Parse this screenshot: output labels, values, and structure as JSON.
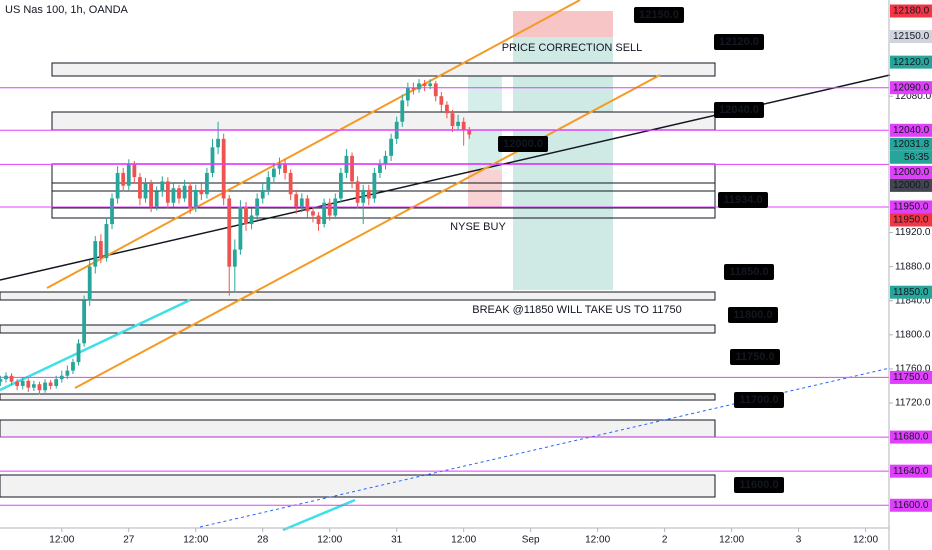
{
  "chart_data": {
    "type": "candlestick",
    "title": "US Nas 100, 1h, OANDA",
    "up_color": "#26a69a",
    "down_color": "#ef5350",
    "x": [
      -11,
      -10,
      -9,
      -8,
      -7,
      -6,
      -5,
      -4,
      -3,
      -2,
      -1,
      0,
      1,
      2,
      3,
      4,
      5,
      6,
      7,
      8,
      9,
      10,
      11,
      12,
      13,
      14,
      15,
      16,
      17,
      18,
      19,
      20,
      21,
      22,
      23,
      24,
      25,
      26,
      27,
      28,
      29,
      30,
      31,
      32,
      33,
      34,
      35,
      36,
      37,
      38,
      39,
      40,
      41,
      42,
      43,
      44,
      45,
      46,
      47,
      48,
      49,
      50,
      51,
      52,
      53,
      54,
      55,
      56,
      57,
      58,
      59,
      60,
      61,
      62,
      63,
      64,
      65,
      66,
      67,
      68,
      69,
      70,
      71,
      72,
      73
    ],
    "ohlc": [
      [
        11745,
        11752,
        11740,
        11748
      ],
      [
        11748,
        11756,
        11744,
        11752
      ],
      [
        11752,
        11755,
        11741,
        11745
      ],
      [
        11745,
        11748,
        11735,
        11740
      ],
      [
        11740,
        11750,
        11736,
        11746
      ],
      [
        11746,
        11749,
        11733,
        11738
      ],
      [
        11738,
        11746,
        11734,
        11742
      ],
      [
        11742,
        11745,
        11730,
        11735
      ],
      [
        11735,
        11748,
        11732,
        11744
      ],
      [
        11744,
        11747,
        11736,
        11740
      ],
      [
        11740,
        11752,
        11737,
        11748
      ],
      [
        11748,
        11758,
        11744,
        11752
      ],
      [
        11752,
        11764,
        11748,
        11758
      ],
      [
        11758,
        11772,
        11754,
        11768
      ],
      [
        11768,
        11795,
        11764,
        11790
      ],
      [
        11790,
        11846,
        11786,
        11840
      ],
      [
        11840,
        11888,
        11834,
        11880
      ],
      [
        11880,
        11916,
        11872,
        11910
      ],
      [
        11910,
        11918,
        11884,
        11890
      ],
      [
        11890,
        11936,
        11886,
        11930
      ],
      [
        11930,
        11966,
        11924,
        11960
      ],
      [
        11960,
        11998,
        11954,
        11990
      ],
      [
        11990,
        11996,
        11968,
        11975
      ],
      [
        11975,
        12006,
        11970,
        12000
      ],
      [
        12000,
        12004,
        11978,
        11985
      ],
      [
        11985,
        11990,
        11952,
        11960
      ],
      [
        11960,
        11984,
        11955,
        11978
      ],
      [
        11978,
        11982,
        11944,
        11950
      ],
      [
        11950,
        11974,
        11946,
        11968
      ],
      [
        11968,
        11986,
        11962,
        11980
      ],
      [
        11980,
        11985,
        11948,
        11955
      ],
      [
        11955,
        11978,
        11950,
        11972
      ],
      [
        11972,
        11976,
        11954,
        11960
      ],
      [
        11960,
        11982,
        11956,
        11975
      ],
      [
        11975,
        11979,
        11942,
        11948
      ],
      [
        11948,
        11976,
        11944,
        11970
      ],
      [
        11970,
        11978,
        11958,
        11965
      ],
      [
        11965,
        11996,
        11960,
        11990
      ],
      [
        11990,
        12030,
        11985,
        12020
      ],
      [
        12020,
        12050,
        12012,
        12030
      ],
      [
        12030,
        12036,
        11952,
        11960
      ],
      [
        11960,
        11964,
        11846,
        11880
      ],
      [
        11880,
        11912,
        11850,
        11900
      ],
      [
        11900,
        11958,
        11894,
        11950
      ],
      [
        11950,
        11956,
        11922,
        11930
      ],
      [
        11930,
        11948,
        11924,
        11940
      ],
      [
        11940,
        11966,
        11934,
        11960
      ],
      [
        11960,
        11978,
        11954,
        11970
      ],
      [
        11970,
        11992,
        11964,
        11985
      ],
      [
        11985,
        12002,
        11978,
        11995
      ],
      [
        11995,
        12008,
        11988,
        12000
      ],
      [
        12000,
        12006,
        11982,
        11990
      ],
      [
        11990,
        11994,
        11958,
        11965
      ],
      [
        11965,
        11970,
        11942,
        11950
      ],
      [
        11950,
        11966,
        11944,
        11960
      ],
      [
        11960,
        11964,
        11938,
        11945
      ],
      [
        11945,
        11950,
        11932,
        11940
      ],
      [
        11940,
        11944,
        11922,
        11930
      ],
      [
        11930,
        11960,
        11926,
        11955
      ],
      [
        11955,
        11960,
        11934,
        11940
      ],
      [
        11940,
        11966,
        11936,
        11960
      ],
      [
        11960,
        11996,
        11955,
        11990
      ],
      [
        11990,
        12018,
        11984,
        12010
      ],
      [
        12010,
        12014,
        11972,
        11980
      ],
      [
        11980,
        11986,
        11948,
        11955
      ],
      [
        11955,
        11976,
        11930,
        11970
      ],
      [
        11970,
        11976,
        11952,
        11960
      ],
      [
        11960,
        11996,
        11955,
        11990
      ],
      [
        11990,
        12006,
        11984,
        12000
      ],
      [
        12000,
        12016,
        11994,
        12010
      ],
      [
        12010,
        12036,
        12004,
        12030
      ],
      [
        12030,
        12056,
        12024,
        12050
      ],
      [
        12050,
        12082,
        12044,
        12075
      ],
      [
        12075,
        12096,
        12068,
        12090
      ],
      [
        12090,
        12096,
        12082,
        12088
      ],
      [
        12088,
        12100,
        12084,
        12095
      ],
      [
        12095,
        12099,
        12086,
        12092
      ],
      [
        12092,
        12100,
        12088,
        12095
      ],
      [
        12095,
        12098,
        12074,
        12080
      ],
      [
        12080,
        12085,
        12062,
        12070
      ],
      [
        12070,
        12074,
        12054,
        12060
      ],
      [
        12060,
        12064,
        12038,
        12045
      ],
      [
        12045,
        12058,
        12040,
        12050
      ],
      [
        12050,
        12055,
        12022,
        12040
      ],
      [
        12040,
        12044,
        12030,
        12035
      ]
    ],
    "xlim": [
      -11.07,
      148.2
    ],
    "xticks": [
      {
        "value": 0,
        "label": "12:00"
      },
      {
        "value": 12,
        "label": "27"
      },
      {
        "value": 24,
        "label": "12:00"
      },
      {
        "value": 36,
        "label": "28"
      },
      {
        "value": 48,
        "label": "12:00"
      },
      {
        "value": 60,
        "label": "31"
      },
      {
        "value": 72,
        "label": "12:00"
      },
      {
        "value": 84,
        "label": "Sep"
      },
      {
        "value": 96,
        "label": "12:00"
      },
      {
        "value": 108,
        "label": "2"
      },
      {
        "value": 120,
        "label": "12:00"
      },
      {
        "value": 132,
        "label": "3"
      },
      {
        "value": 144,
        "label": "12:00"
      }
    ],
    "ylim": [
      12192.9,
      11547.5
    ],
    "yticks": [
      {
        "value": 12080,
        "label": "12080.0"
      },
      {
        "value": 11920,
        "label": "11920.0"
      },
      {
        "value": 11880,
        "label": "11880.0"
      },
      {
        "value": 11840,
        "label": "11840.0"
      },
      {
        "value": 11800,
        "label": "11800.0"
      },
      {
        "value": 11760,
        "label": "11760.0"
      },
      {
        "value": 11720,
        "label": "11720.0"
      }
    ],
    "price_badges": [
      {
        "value": 12180,
        "label": "12180.0",
        "style": "red"
      },
      {
        "value": 12150,
        "label": "12150.0",
        "style": "gray"
      },
      {
        "value": 12120,
        "label": "12120.0",
        "style": "teal"
      },
      {
        "value": 12090,
        "label": "12090.0",
        "style": "magenta"
      },
      {
        "value": 12040,
        "label": "12040.0",
        "style": "magenta"
      },
      {
        "value": 12031.8,
        "label": "12031.8",
        "style": "teal"
      },
      {
        "value": 12000,
        "label": "12000.0",
        "style": "magenta"
      },
      {
        "value": 12000,
        "label": "12000.0",
        "style": "dark"
      },
      {
        "value": 11950,
        "label": "11950.0",
        "style": "magenta"
      },
      {
        "value": 11950,
        "label": "11950.0",
        "style": "red"
      },
      {
        "value": 11850,
        "label": "11850.0",
        "style": "teal"
      },
      {
        "value": 11750,
        "label": "11750.0",
        "style": "magenta"
      },
      {
        "value": 11680,
        "label": "11680.0",
        "style": "magenta"
      },
      {
        "value": 11640,
        "label": "11640.0",
        "style": "magenta"
      },
      {
        "value": 11600,
        "label": "11600.0",
        "style": "magenta"
      }
    ],
    "countdown": "56:35",
    "callouts": [
      "12150.0",
      "12120.0",
      "12040.0",
      "12000.0",
      "11934.0",
      "11850.0",
      "11800.0",
      "11750.0",
      "11700.0",
      "11600.0"
    ],
    "annotations": [
      "PRICE CORRECTION SELL",
      "NYSE BUY",
      "BREAK @11850 WILL TAKE US TO 11750"
    ]
  }
}
